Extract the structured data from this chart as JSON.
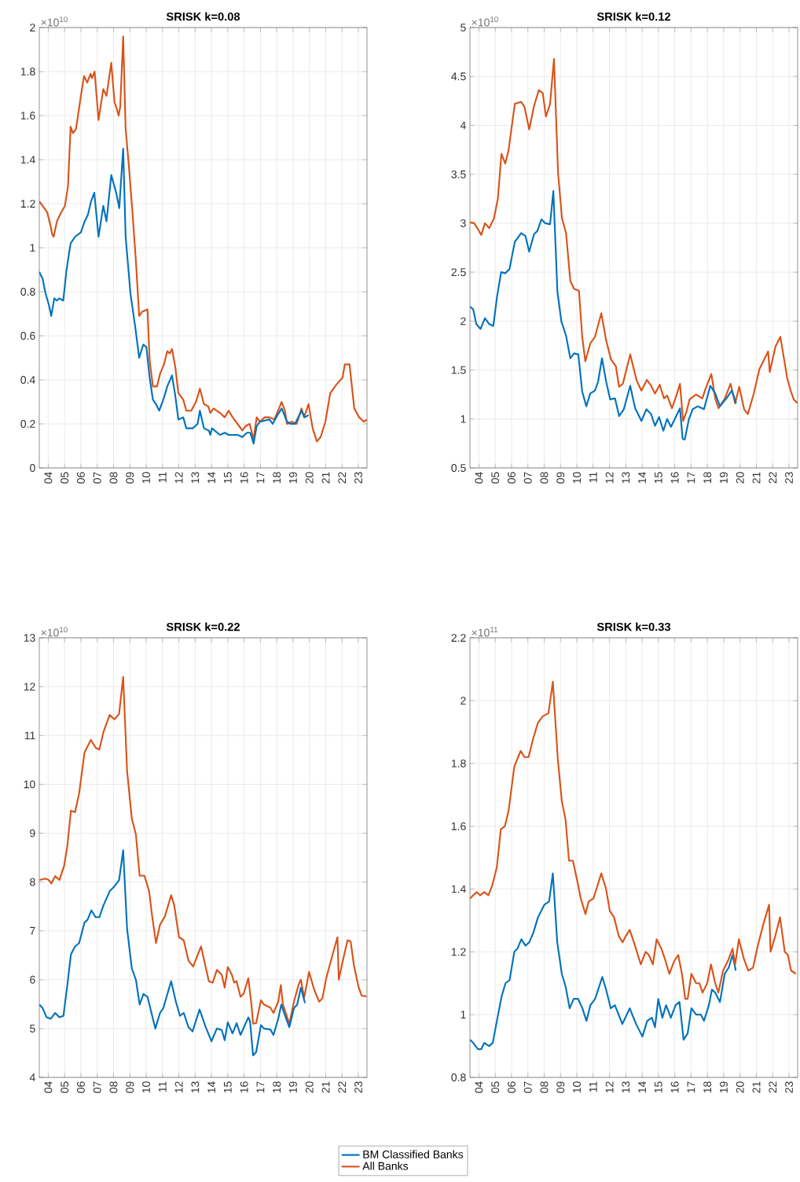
{
  "chart_data": [
    {
      "type": "line",
      "title": "SRISK k=0.08",
      "annotations": [
        "×10$^{10}$"
      ],
      "xlim": [
        2003.45,
        2023.53
      ],
      "ylim": [
        0,
        2
      ],
      "grid": true,
      "xticks": [
        {
          "value": 2004,
          "label": "04"
        },
        {
          "value": 2005,
          "label": "05"
        },
        {
          "value": 2006,
          "label": "06"
        },
        {
          "value": 2007,
          "label": "07"
        },
        {
          "value": 2008,
          "label": "08"
        },
        {
          "value": 2009,
          "label": "09"
        },
        {
          "value": 2010,
          "label": "10"
        },
        {
          "value": 2011,
          "label": "11"
        },
        {
          "value": 2012,
          "label": "12"
        },
        {
          "value": 2013,
          "label": "13"
        },
        {
          "value": 2014,
          "label": "14"
        },
        {
          "value": 2015,
          "label": "15"
        },
        {
          "value": 2016,
          "label": "16"
        },
        {
          "value": 2017,
          "label": "17"
        },
        {
          "value": 2018,
          "label": "18"
        },
        {
          "value": 2019,
          "label": "19"
        },
        {
          "value": 2020,
          "label": "20"
        },
        {
          "value": 2021,
          "label": "21"
        },
        {
          "value": 2022,
          "label": "22"
        },
        {
          "value": 2023,
          "label": "23"
        }
      ],
      "yticks": [
        0,
        0.2,
        0.4,
        0.6,
        0.8,
        1,
        1.2,
        1.4,
        1.6,
        1.8,
        2
      ],
      "series": [
        {
          "color": "#d95319",
          "x": [
            2003.45,
            2003.75,
            2003.94,
            2004.14,
            2004.24,
            2004.33,
            2004.53,
            2004.72,
            2005.02,
            2005.21,
            2005.37,
            2005.51,
            2005.7,
            2006.0,
            2006.19,
            2006.39,
            2006.59,
            2006.68,
            2006.84,
            2007.08,
            2007.37,
            2007.57,
            2007.86,
            2008.06,
            2008.16,
            2008.31,
            2008.41,
            2008.59,
            2008.74,
            2008.94,
            2009.14,
            2009.37,
            2009.57,
            2009.76,
            2010.08,
            2010.21,
            2010.41,
            2010.66,
            2010.86,
            2011.09,
            2011.29,
            2011.45,
            2011.58,
            2011.78,
            2011.97,
            2012.27,
            2012.46,
            2012.76,
            2013.05,
            2013.29,
            2013.54,
            2013.8,
            2013.93,
            2014.13,
            2014.52,
            2014.81,
            2015.05,
            2015.3,
            2015.6,
            2015.89,
            2016.09,
            2016.34,
            2016.58,
            2016.77,
            2016.97,
            2017.26,
            2017.56,
            2017.85,
            2018.14,
            2018.3,
            2018.5,
            2018.63,
            2018.93,
            2019.22,
            2019.52,
            2019.67,
            2019.95,
            2020.2,
            2020.46,
            2020.69,
            2020.98,
            2021.28,
            2021.67,
            2022.03,
            2022.17,
            2022.46,
            2022.75,
            2023.05,
            2023.34,
            2023.53
          ],
          "values": [
            1.21,
            1.18,
            1.16,
            1.1,
            1.06,
            1.05,
            1.12,
            1.15,
            1.19,
            1.28,
            1.55,
            1.52,
            1.54,
            1.69,
            1.78,
            1.75,
            1.79,
            1.77,
            1.8,
            1.58,
            1.72,
            1.69,
            1.84,
            1.66,
            1.64,
            1.6,
            1.64,
            1.96,
            1.54,
            1.37,
            1.18,
            0.94,
            0.69,
            0.71,
            0.72,
            0.49,
            0.37,
            0.37,
            0.43,
            0.47,
            0.53,
            0.52,
            0.54,
            0.46,
            0.34,
            0.31,
            0.26,
            0.26,
            0.3,
            0.36,
            0.29,
            0.28,
            0.25,
            0.27,
            0.25,
            0.23,
            0.26,
            0.23,
            0.2,
            0.17,
            0.19,
            0.2,
            0.13,
            0.23,
            0.21,
            0.23,
            0.23,
            0.22,
            0.27,
            0.3,
            0.26,
            0.2,
            0.21,
            0.2,
            0.27,
            0.23,
            0.29,
            0.18,
            0.12,
            0.14,
            0.21,
            0.34,
            0.38,
            0.41,
            0.47,
            0.47,
            0.27,
            0.23,
            0.21,
            0.22
          ]
        },
        {
          "color": "#0072bd",
          "x": [
            2003.45,
            2003.65,
            2003.84,
            2004.04,
            2004.18,
            2004.37,
            2004.53,
            2004.67,
            2004.92,
            2005.12,
            2005.37,
            2005.65,
            2006.0,
            2006.23,
            2006.43,
            2006.62,
            2006.82,
            2007.08,
            2007.37,
            2007.57,
            2007.86,
            2008.16,
            2008.35,
            2008.59,
            2008.74,
            2009.04,
            2009.33,
            2009.57,
            2009.82,
            2010.01,
            2010.21,
            2010.41,
            2010.6,
            2010.8,
            2011.05,
            2011.29,
            2011.58,
            2011.78,
            2011.97,
            2012.27,
            2012.46,
            2012.85,
            2013.15,
            2013.29,
            2013.54,
            2013.84,
            2013.93,
            2014.03,
            2014.52,
            2014.81,
            2015.05,
            2015.6,
            2015.89,
            2016.18,
            2016.38,
            2016.58,
            2016.77,
            2016.97,
            2017.56,
            2017.75,
            2018.05,
            2018.3,
            2018.63,
            2018.84,
            2019.12,
            2019.52,
            2019.71,
            2019.95
          ],
          "values": [
            0.89,
            0.86,
            0.79,
            0.74,
            0.69,
            0.77,
            0.76,
            0.77,
            0.76,
            0.9,
            1.02,
            1.05,
            1.07,
            1.12,
            1.15,
            1.21,
            1.25,
            1.05,
            1.19,
            1.12,
            1.33,
            1.25,
            1.18,
            1.45,
            1.05,
            0.79,
            0.64,
            0.5,
            0.56,
            0.55,
            0.41,
            0.31,
            0.29,
            0.26,
            0.31,
            0.37,
            0.42,
            0.33,
            0.22,
            0.23,
            0.18,
            0.18,
            0.2,
            0.26,
            0.18,
            0.17,
            0.15,
            0.18,
            0.15,
            0.16,
            0.15,
            0.15,
            0.14,
            0.16,
            0.16,
            0.11,
            0.19,
            0.21,
            0.22,
            0.2,
            0.24,
            0.27,
            0.21,
            0.2,
            0.2,
            0.26,
            0.23,
            0.24
          ]
        }
      ]
    },
    {
      "type": "line",
      "title": "SRISK k=0.12",
      "annotations": [
        "×10$^{10}$"
      ],
      "xlim": [
        2003.45,
        2023.53
      ],
      "ylim": [
        0.5,
        5
      ],
      "grid": true,
      "xticks": [
        {
          "value": 2004,
          "label": "04"
        },
        {
          "value": 2005,
          "label": "05"
        },
        {
          "value": 2006,
          "label": "06"
        },
        {
          "value": 2007,
          "label": "07"
        },
        {
          "value": 2008,
          "label": "08"
        },
        {
          "value": 2009,
          "label": "09"
        },
        {
          "value": 2010,
          "label": "10"
        },
        {
          "value": 2011,
          "label": "11"
        },
        {
          "value": 2012,
          "label": "12"
        },
        {
          "value": 2013,
          "label": "13"
        },
        {
          "value": 2014,
          "label": "14"
        },
        {
          "value": 2015,
          "label": "15"
        },
        {
          "value": 2016,
          "label": "16"
        },
        {
          "value": 2017,
          "label": "17"
        },
        {
          "value": 2018,
          "label": "18"
        },
        {
          "value": 2019,
          "label": "19"
        },
        {
          "value": 2020,
          "label": "20"
        },
        {
          "value": 2021,
          "label": "21"
        },
        {
          "value": 2022,
          "label": "22"
        },
        {
          "value": 2023,
          "label": "23"
        }
      ],
      "yticks": [
        0.5,
        1,
        1.5,
        2,
        2.5,
        3,
        3.5,
        4,
        4.5,
        5
      ],
      "series": [
        {
          "color": "#d95319",
          "x": [
            2003.45,
            2003.71,
            2003.94,
            2004.14,
            2004.37,
            2004.63,
            2004.92,
            2005.16,
            2005.38,
            2005.61,
            2005.81,
            2006.2,
            2006.59,
            2006.79,
            2007.08,
            2007.38,
            2007.67,
            2007.91,
            2008.11,
            2008.36,
            2008.6,
            2008.85,
            2009.09,
            2009.34,
            2009.6,
            2009.83,
            2010.13,
            2010.33,
            2010.52,
            2010.82,
            2011.11,
            2011.5,
            2011.8,
            2012.09,
            2012.39,
            2012.59,
            2012.82,
            2013.27,
            2013.67,
            2013.96,
            2014.29,
            2014.55,
            2014.79,
            2015.08,
            2015.34,
            2015.53,
            2015.83,
            2016.12,
            2016.32,
            2016.51,
            2016.71,
            2016.91,
            2017.3,
            2017.69,
            2017.89,
            2018.24,
            2018.48,
            2018.68,
            2019.07,
            2019.42,
            2019.7,
            2019.95,
            2020.25,
            2020.48,
            2020.84,
            2021.19,
            2021.72,
            2021.82,
            2022.17,
            2022.47,
            2022.7,
            2022.9,
            2023.1,
            2023.29,
            2023.53
          ],
          "values": [
            3.01,
            3.0,
            2.94,
            2.88,
            3.0,
            2.95,
            3.05,
            3.25,
            3.71,
            3.61,
            3.74,
            4.22,
            4.24,
            4.19,
            3.96,
            4.2,
            4.36,
            4.33,
            4.09,
            4.22,
            4.68,
            3.51,
            3.05,
            2.9,
            2.41,
            2.33,
            2.31,
            1.84,
            1.59,
            1.77,
            1.84,
            2.08,
            1.8,
            1.61,
            1.54,
            1.33,
            1.36,
            1.66,
            1.39,
            1.29,
            1.4,
            1.34,
            1.26,
            1.35,
            1.21,
            1.24,
            1.11,
            1.25,
            1.36,
            0.98,
            1.07,
            1.2,
            1.25,
            1.21,
            1.31,
            1.46,
            1.21,
            1.11,
            1.21,
            1.36,
            1.16,
            1.33,
            1.1,
            1.05,
            1.26,
            1.51,
            1.69,
            1.48,
            1.74,
            1.84,
            1.61,
            1.41,
            1.29,
            1.2,
            1.16
          ]
        },
        {
          "color": "#0072bd",
          "x": [
            2003.45,
            2003.65,
            2003.84,
            2004.1,
            2004.37,
            2004.63,
            2004.88,
            2005.12,
            2005.36,
            2005.61,
            2005.87,
            2006.2,
            2006.59,
            2006.85,
            2007.08,
            2007.38,
            2007.58,
            2007.83,
            2008.07,
            2008.36,
            2008.56,
            2008.81,
            2009.05,
            2009.34,
            2009.6,
            2009.83,
            2010.09,
            2010.33,
            2010.58,
            2010.82,
            2011.11,
            2011.3,
            2011.54,
            2011.8,
            2012.04,
            2012.34,
            2012.59,
            2012.88,
            2013.27,
            2013.57,
            2013.96,
            2014.26,
            2014.55,
            2014.79,
            2015.04,
            2015.3,
            2015.53,
            2015.77,
            2016.32,
            2016.48,
            2016.61,
            2016.87,
            2017.1,
            2017.4,
            2017.79,
            2018.18,
            2018.48,
            2018.77,
            2019.16,
            2019.5,
            2019.76
          ],
          "values": [
            2.15,
            2.12,
            1.97,
            1.92,
            2.03,
            1.97,
            1.95,
            2.26,
            2.5,
            2.49,
            2.53,
            2.81,
            2.9,
            2.87,
            2.71,
            2.89,
            2.92,
            3.04,
            3.0,
            2.99,
            3.33,
            2.3,
            2.0,
            1.85,
            1.62,
            1.67,
            1.66,
            1.28,
            1.13,
            1.26,
            1.29,
            1.38,
            1.62,
            1.38,
            1.2,
            1.21,
            1.03,
            1.1,
            1.34,
            1.11,
            0.98,
            1.1,
            1.05,
            0.93,
            1.02,
            0.88,
            1.0,
            0.92,
            1.11,
            0.8,
            0.79,
            1.0,
            1.1,
            1.13,
            1.1,
            1.34,
            1.26,
            1.13,
            1.21,
            1.29,
            1.16
          ]
        }
      ]
    },
    {
      "type": "line",
      "title": "SRISK k=0.22",
      "annotations": [
        "×10$^{10}$"
      ],
      "xlim": [
        2003.45,
        2023.53
      ],
      "ylim": [
        4,
        13
      ],
      "grid": true,
      "xticks": [
        {
          "value": 2004,
          "label": "04"
        },
        {
          "value": 2005,
          "label": "05"
        },
        {
          "value": 2006,
          "label": "06"
        },
        {
          "value": 2007,
          "label": "07"
        },
        {
          "value": 2008,
          "label": "08"
        },
        {
          "value": 2009,
          "label": "09"
        },
        {
          "value": 2010,
          "label": "10"
        },
        {
          "value": 2011,
          "label": "11"
        },
        {
          "value": 2012,
          "label": "12"
        },
        {
          "value": 2013,
          "label": "13"
        },
        {
          "value": 2014,
          "label": "14"
        },
        {
          "value": 2015,
          "label": "15"
        },
        {
          "value": 2016,
          "label": "16"
        },
        {
          "value": 2017,
          "label": "17"
        },
        {
          "value": 2018,
          "label": "18"
        },
        {
          "value": 2019,
          "label": "19"
        },
        {
          "value": 2020,
          "label": "20"
        },
        {
          "value": 2021,
          "label": "21"
        },
        {
          "value": 2022,
          "label": "22"
        },
        {
          "value": 2023,
          "label": "23"
        }
      ],
      "yticks": [
        4,
        5,
        6,
        7,
        8,
        9,
        10,
        11,
        12,
        13
      ],
      "series": [
        {
          "color": "#d95319",
          "x": [
            2003.46,
            2003.81,
            2004.0,
            2004.19,
            2004.42,
            2004.68,
            2004.97,
            2005.16,
            2005.39,
            2005.64,
            2005.89,
            2006.22,
            2006.61,
            2006.9,
            2007.13,
            2007.38,
            2007.76,
            2008.05,
            2008.34,
            2008.59,
            2008.83,
            2009.12,
            2009.37,
            2009.6,
            2009.89,
            2010.18,
            2010.37,
            2010.6,
            2010.85,
            2011.14,
            2011.53,
            2011.72,
            2012.01,
            2012.3,
            2012.59,
            2012.88,
            2013.17,
            2013.36,
            2013.84,
            2014.08,
            2014.33,
            2014.63,
            2014.81,
            2015.0,
            2015.25,
            2015.39,
            2015.54,
            2015.78,
            2015.97,
            2016.26,
            2016.45,
            2016.55,
            2016.74,
            2017.03,
            2017.22,
            2017.61,
            2017.8,
            2018.09,
            2018.25,
            2018.38,
            2018.77,
            2019.06,
            2019.35,
            2019.48,
            2019.68,
            2019.98,
            2020.31,
            2020.6,
            2020.8,
            2021.03,
            2021.37,
            2021.72,
            2021.8,
            2022.05,
            2022.34,
            2022.53,
            2022.73,
            2023.02,
            2023.21,
            2023.5
          ],
          "values": [
            8.04,
            8.07,
            8.05,
            7.97,
            8.12,
            8.04,
            8.33,
            8.72,
            9.46,
            9.43,
            9.81,
            10.65,
            10.91,
            10.75,
            10.71,
            11.07,
            11.42,
            11.33,
            11.44,
            12.2,
            10.27,
            9.3,
            8.97,
            8.13,
            8.13,
            7.81,
            7.29,
            6.75,
            7.13,
            7.29,
            7.73,
            7.52,
            6.87,
            6.81,
            6.39,
            6.27,
            6.52,
            6.68,
            5.97,
            5.94,
            6.2,
            6.1,
            5.84,
            6.26,
            6.1,
            5.94,
            5.97,
            5.65,
            5.71,
            6.03,
            5.49,
            5.1,
            5.11,
            5.58,
            5.49,
            5.43,
            5.32,
            5.55,
            5.89,
            5.49,
            5.1,
            5.56,
            5.91,
            6.0,
            5.63,
            6.16,
            5.78,
            5.55,
            5.62,
            6.03,
            6.45,
            6.87,
            6.0,
            6.39,
            6.81,
            6.78,
            6.29,
            5.84,
            5.67,
            5.66
          ]
        },
        {
          "color": "#0072bd",
          "x": [
            2003.46,
            2003.65,
            2003.9,
            2004.15,
            2004.42,
            2004.68,
            2004.93,
            2005.16,
            2005.39,
            2005.64,
            2005.89,
            2006.22,
            2006.41,
            2006.64,
            2006.9,
            2007.13,
            2007.38,
            2007.76,
            2008.05,
            2008.34,
            2008.59,
            2008.83,
            2009.12,
            2009.37,
            2009.6,
            2009.83,
            2010.08,
            2010.56,
            2010.85,
            2011.05,
            2011.53,
            2011.82,
            2012.07,
            2012.3,
            2012.59,
            2012.84,
            2013.27,
            2013.65,
            2014.0,
            2014.33,
            2014.63,
            2014.81,
            2015.0,
            2015.29,
            2015.54,
            2015.78,
            2016.26,
            2016.36,
            2016.55,
            2016.74,
            2017.03,
            2017.22,
            2017.61,
            2017.8,
            2018.09,
            2018.28,
            2018.48,
            2018.77,
            2019.06,
            2019.25,
            2019.48,
            2019.73
          ],
          "values": [
            5.49,
            5.42,
            5.23,
            5.2,
            5.32,
            5.23,
            5.26,
            5.87,
            6.52,
            6.68,
            6.75,
            7.17,
            7.23,
            7.42,
            7.28,
            7.28,
            7.52,
            7.81,
            7.91,
            8.04,
            8.65,
            7.04,
            6.23,
            6.0,
            5.49,
            5.71,
            5.65,
            5.0,
            5.32,
            5.42,
            5.97,
            5.55,
            5.26,
            5.32,
            5.03,
            4.94,
            5.39,
            5.03,
            4.74,
            5.0,
            4.97,
            4.76,
            5.13,
            4.9,
            5.11,
            4.87,
            5.23,
            5.16,
            4.45,
            4.52,
            5.07,
            5.0,
            4.98,
            4.87,
            5.2,
            5.49,
            5.29,
            5.03,
            5.42,
            5.49,
            5.84,
            5.52
          ]
        }
      ]
    },
    {
      "type": "line",
      "title": "SRISK k=0.33",
      "annotations": [
        "×10$^{11}$"
      ],
      "xlim": [
        2003.45,
        2023.53
      ],
      "ylim": [
        0.8,
        2.2
      ],
      "grid": true,
      "legend": "bottom",
      "xticks": [
        {
          "value": 2004,
          "label": "04"
        },
        {
          "value": 2005,
          "label": "05"
        },
        {
          "value": 2006,
          "label": "06"
        },
        {
          "value": 2007,
          "label": "07"
        },
        {
          "value": 2008,
          "label": "08"
        },
        {
          "value": 2009,
          "label": "09"
        },
        {
          "value": 2010,
          "label": "10"
        },
        {
          "value": 2011,
          "label": "11"
        },
        {
          "value": 2012,
          "label": "12"
        },
        {
          "value": 2013,
          "label": "13"
        },
        {
          "value": 2014,
          "label": "14"
        },
        {
          "value": 2015,
          "label": "15"
        },
        {
          "value": 2016,
          "label": "16"
        },
        {
          "value": 2017,
          "label": "17"
        },
        {
          "value": 2018,
          "label": "18"
        },
        {
          "value": 2019,
          "label": "19"
        },
        {
          "value": 2020,
          "label": "20"
        },
        {
          "value": 2021,
          "label": "21"
        },
        {
          "value": 2022,
          "label": "22"
        },
        {
          "value": 2023,
          "label": "23"
        }
      ],
      "yticks": [
        0.8,
        1,
        1.2,
        1.4,
        1.6,
        1.8,
        2,
        2.2
      ],
      "series": [
        {
          "name": "BM Classified Banks",
          "color": "#0072bd",
          "x": [
            2003.45,
            2003.65,
            2003.94,
            2004.14,
            2004.33,
            2004.62,
            2004.85,
            2005.1,
            2005.4,
            2005.63,
            2005.88,
            2006.17,
            2006.36,
            2006.6,
            2006.85,
            2007.08,
            2007.33,
            2007.62,
            2008.01,
            2008.3,
            2008.53,
            2008.8,
            2009.08,
            2009.31,
            2009.56,
            2009.81,
            2010.08,
            2010.34,
            2010.59,
            2010.83,
            2011.12,
            2011.56,
            2011.79,
            2012.08,
            2012.33,
            2012.56,
            2012.79,
            2013.24,
            2013.63,
            2014.02,
            2014.31,
            2014.6,
            2014.79,
            2014.99,
            2015.24,
            2015.47,
            2015.76,
            2016.05,
            2016.29,
            2016.54,
            2016.79,
            2017.02,
            2017.31,
            2017.6,
            2017.79,
            2018.09,
            2018.28,
            2018.48,
            2018.77,
            2019.06,
            2019.31,
            2019.54,
            2019.74
          ],
          "values": [
            0.92,
            0.91,
            0.89,
            0.89,
            0.91,
            0.9,
            0.91,
            0.98,
            1.06,
            1.1,
            1.11,
            1.2,
            1.21,
            1.24,
            1.22,
            1.23,
            1.26,
            1.31,
            1.35,
            1.36,
            1.45,
            1.23,
            1.13,
            1.09,
            1.02,
            1.05,
            1.05,
            1.02,
            0.98,
            1.03,
            1.05,
            1.12,
            1.08,
            1.02,
            1.03,
            1.0,
            0.97,
            1.02,
            0.97,
            0.93,
            0.98,
            0.99,
            0.96,
            1.05,
            0.99,
            1.03,
            0.99,
            1.03,
            1.04,
            0.92,
            0.94,
            1.02,
            1.0,
            1.0,
            0.98,
            1.03,
            1.08,
            1.07,
            1.04,
            1.13,
            1.15,
            1.19,
            1.14
          ]
        },
        {
          "name": "All Banks",
          "color": "#d95319",
          "x": [
            2003.45,
            2003.65,
            2003.88,
            2004.08,
            2004.33,
            2004.58,
            2004.81,
            2005.1,
            2005.34,
            2005.59,
            2005.82,
            2006.17,
            2006.56,
            2006.79,
            2007.04,
            2007.33,
            2007.62,
            2007.91,
            2008.26,
            2008.53,
            2008.84,
            2009.08,
            2009.31,
            2009.52,
            2009.76,
            2010.05,
            2010.24,
            2010.53,
            2010.72,
            2011.02,
            2011.5,
            2011.79,
            2012.02,
            2012.28,
            2012.57,
            2012.8,
            2013.0,
            2013.24,
            2013.5,
            2013.92,
            2014.21,
            2014.41,
            2014.66,
            2014.89,
            2015.18,
            2015.38,
            2015.67,
            2015.96,
            2016.21,
            2016.44,
            2016.64,
            2016.79,
            2017.02,
            2017.31,
            2017.51,
            2017.7,
            2017.99,
            2018.22,
            2018.48,
            2018.67,
            2018.96,
            2019.25,
            2019.54,
            2019.7,
            2019.93,
            2020.22,
            2020.51,
            2020.8,
            2021.09,
            2021.44,
            2021.78,
            2021.87,
            2022.16,
            2022.45,
            2022.74,
            2022.93,
            2023.13,
            2023.42
          ],
          "values": [
            1.37,
            1.38,
            1.39,
            1.38,
            1.39,
            1.38,
            1.41,
            1.47,
            1.59,
            1.6,
            1.65,
            1.79,
            1.84,
            1.82,
            1.82,
            1.88,
            1.93,
            1.95,
            1.96,
            2.06,
            1.81,
            1.68,
            1.62,
            1.49,
            1.49,
            1.42,
            1.37,
            1.32,
            1.36,
            1.37,
            1.45,
            1.4,
            1.33,
            1.31,
            1.25,
            1.23,
            1.25,
            1.27,
            1.23,
            1.16,
            1.2,
            1.19,
            1.16,
            1.24,
            1.21,
            1.18,
            1.13,
            1.17,
            1.19,
            1.13,
            1.05,
            1.05,
            1.13,
            1.1,
            1.1,
            1.07,
            1.1,
            1.16,
            1.1,
            1.07,
            1.14,
            1.17,
            1.21,
            1.16,
            1.24,
            1.18,
            1.14,
            1.15,
            1.22,
            1.29,
            1.35,
            1.2,
            1.25,
            1.31,
            1.2,
            1.19,
            1.14,
            1.13
          ]
        }
      ]
    }
  ]
}
